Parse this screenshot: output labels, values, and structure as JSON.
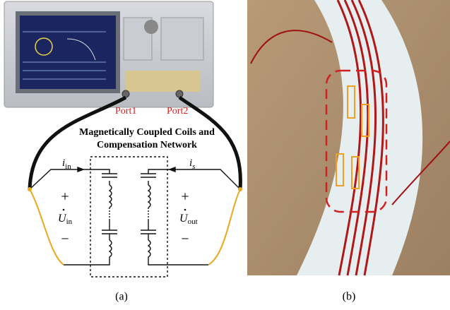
{
  "panel_a": {
    "ports": [
      "Port1",
      "Port2"
    ],
    "network_title": [
      "Magnetically Coupled Coils and",
      "Compensation Network"
    ],
    "currents": [
      {
        "symbol": "i",
        "sub": "in"
      },
      {
        "symbol": "i",
        "sub": "s"
      }
    ],
    "voltages": [
      {
        "symbol": "U",
        "sub": "in"
      },
      {
        "symbol": "U",
        "sub": "out"
      }
    ],
    "plus": "+",
    "minus": "−",
    "caption": "(a)"
  },
  "panel_b": {
    "caption": "(b)"
  }
}
